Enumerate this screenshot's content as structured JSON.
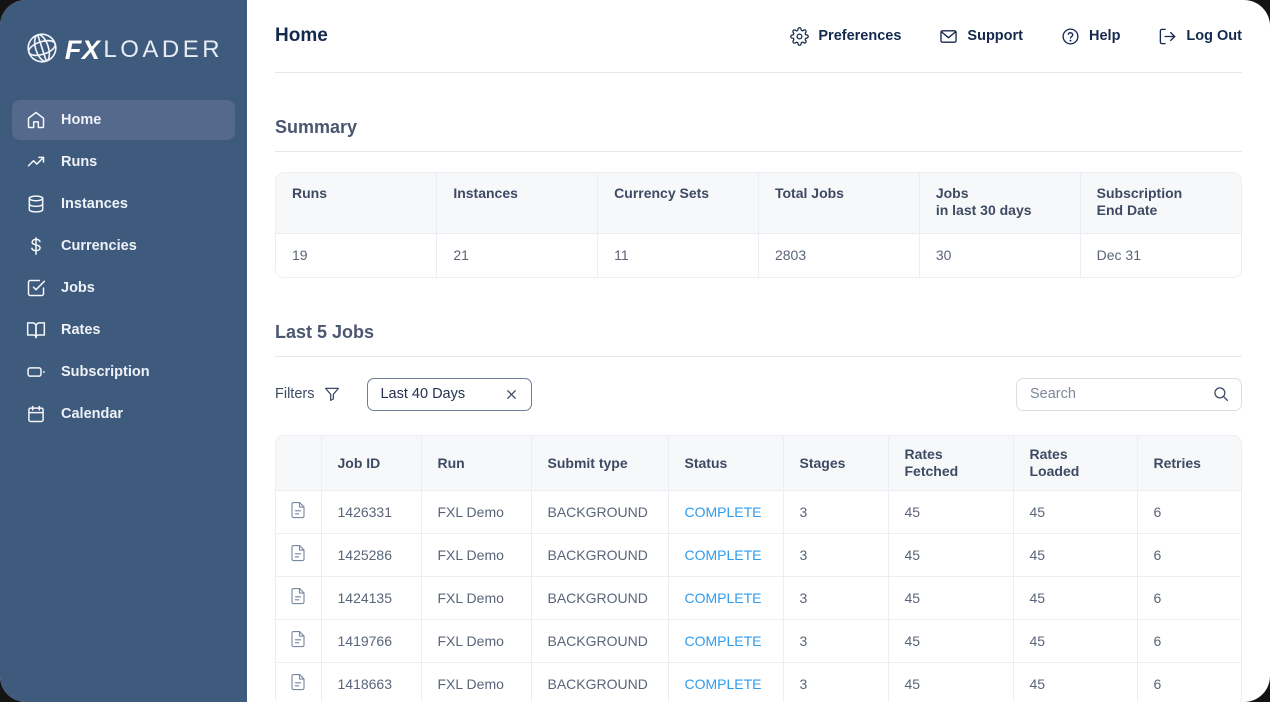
{
  "brand": {
    "fx": "FX",
    "loader": "LOADER"
  },
  "colors": {
    "sidebar_bg": "#3e5a7c",
    "sidebar_active_bg": "#54698c",
    "navy": "#14294e",
    "heading": "#4b5670",
    "status_blue": "#2e9cef"
  },
  "sidebar": {
    "items": [
      {
        "label": "Home",
        "icon": "home",
        "active": true
      },
      {
        "label": "Runs",
        "icon": "trending-up",
        "active": false
      },
      {
        "label": "Instances",
        "icon": "database",
        "active": false
      },
      {
        "label": "Currencies",
        "icon": "dollar",
        "active": false
      },
      {
        "label": "Jobs",
        "icon": "check-square",
        "active": false
      },
      {
        "label": "Rates",
        "icon": "book-open",
        "active": false
      },
      {
        "label": "Subscription",
        "icon": "card",
        "active": false
      },
      {
        "label": "Calendar",
        "icon": "calendar",
        "active": false
      }
    ]
  },
  "header": {
    "title": "Home",
    "actions": [
      {
        "label": "Preferences",
        "icon": "gear"
      },
      {
        "label": "Support",
        "icon": "mail"
      },
      {
        "label": "Help",
        "icon": "help-circle"
      },
      {
        "label": "Log Out",
        "icon": "log-out"
      }
    ]
  },
  "summary": {
    "title": "Summary",
    "columns": [
      "Runs",
      "Instances",
      "Currency Sets",
      "Total Jobs",
      "Jobs\nin last 30 days",
      "Subscription\nEnd Date"
    ],
    "values": [
      "19",
      "21",
      "11",
      "2803",
      "30",
      "Dec 31"
    ]
  },
  "jobs": {
    "title": "Last 5 Jobs",
    "filters_label": "Filters",
    "filter_chip": "Last 40 Days",
    "search_placeholder": "Search",
    "columns": [
      "Job ID",
      "Run",
      "Submit type",
      "Status",
      "Stages",
      "Rates Fetched",
      "Rates Loaded",
      "Retries"
    ],
    "rows": [
      {
        "job_id": "1426331",
        "run": "FXL Demo",
        "submit_type": "BACKGROUND",
        "status": "COMPLETE",
        "stages": "3",
        "rates_fetched": "45",
        "rates_loaded": "45",
        "retries": "6"
      },
      {
        "job_id": "1425286",
        "run": "FXL Demo",
        "submit_type": "BACKGROUND",
        "status": "COMPLETE",
        "stages": "3",
        "rates_fetched": "45",
        "rates_loaded": "45",
        "retries": "6"
      },
      {
        "job_id": "1424135",
        "run": "FXL Demo",
        "submit_type": "BACKGROUND",
        "status": "COMPLETE",
        "stages": "3",
        "rates_fetched": "45",
        "rates_loaded": "45",
        "retries": "6"
      },
      {
        "job_id": "1419766",
        "run": "FXL Demo",
        "submit_type": "BACKGROUND",
        "status": "COMPLETE",
        "stages": "3",
        "rates_fetched": "45",
        "rates_loaded": "45",
        "retries": "6"
      },
      {
        "job_id": "1418663",
        "run": "FXL Demo",
        "submit_type": "BACKGROUND",
        "status": "COMPLETE",
        "stages": "3",
        "rates_fetched": "45",
        "rates_loaded": "45",
        "retries": "6"
      }
    ]
  }
}
